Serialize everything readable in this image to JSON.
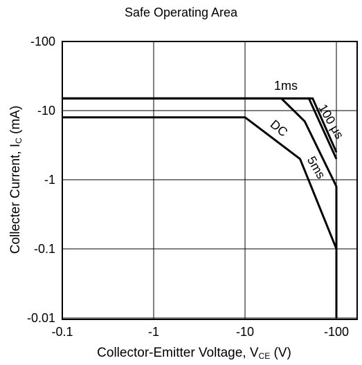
{
  "chart_data": {
    "type": "line",
    "title": "Safe Operating Area",
    "xlabel": {
      "main": "Collector-Emitter Voltage, V",
      "sub": "CE",
      "unit": " (V)"
    },
    "ylabel": {
      "main": "Collecter Current, I",
      "sub": "C",
      "unit": " (mA)"
    },
    "x_scale": "log",
    "y_scale": "log",
    "xlim": [
      -0.1,
      -200
    ],
    "ylim": [
      -0.01,
      -100
    ],
    "x_ticks": [
      {
        "value": -0.1,
        "label": "-0.1"
      },
      {
        "value": -1,
        "label": "-1"
      },
      {
        "value": -10,
        "label": "-10"
      },
      {
        "value": -100,
        "label": "-100"
      }
    ],
    "y_ticks": [
      {
        "value": -100,
        "label": "-100"
      },
      {
        "value": -10,
        "label": "-10"
      },
      {
        "value": -1,
        "label": "-1"
      },
      {
        "value": -0.1,
        "label": "-0.1"
      },
      {
        "value": -0.01,
        "label": "-0.01"
      }
    ],
    "grid": true,
    "line_color": "#000000",
    "series": [
      {
        "name": "DC",
        "x": [
          -0.1,
          -10,
          -40,
          -100,
          -100
        ],
        "y": [
          -8,
          -8,
          -2,
          -0.1,
          -0.01
        ]
      },
      {
        "name": "5ms",
        "x": [
          -0.1,
          -25,
          -45,
          -100,
          -100
        ],
        "y": [
          -15,
          -15,
          -7,
          -0.8,
          -0.01
        ]
      },
      {
        "name": "1ms",
        "x": [
          -0.1,
          -50,
          -100
        ],
        "y": [
          -15,
          -15,
          -2
        ]
      },
      {
        "name": "100 μs",
        "x": [
          -0.1,
          -55,
          -100
        ],
        "y": [
          -15,
          -15,
          -2.5
        ]
      }
    ],
    "annotations": [
      {
        "text": "1ms",
        "x": -28,
        "y": -20,
        "rotate": 0
      },
      {
        "text": "DC",
        "x": -22,
        "y": -5,
        "rotate": 40
      },
      {
        "text": "5ms",
        "x": -55,
        "y": -1.4,
        "rotate": 60
      },
      {
        "text": "100 μs",
        "x": -80,
        "y": -6.5,
        "rotate": 60
      }
    ]
  }
}
